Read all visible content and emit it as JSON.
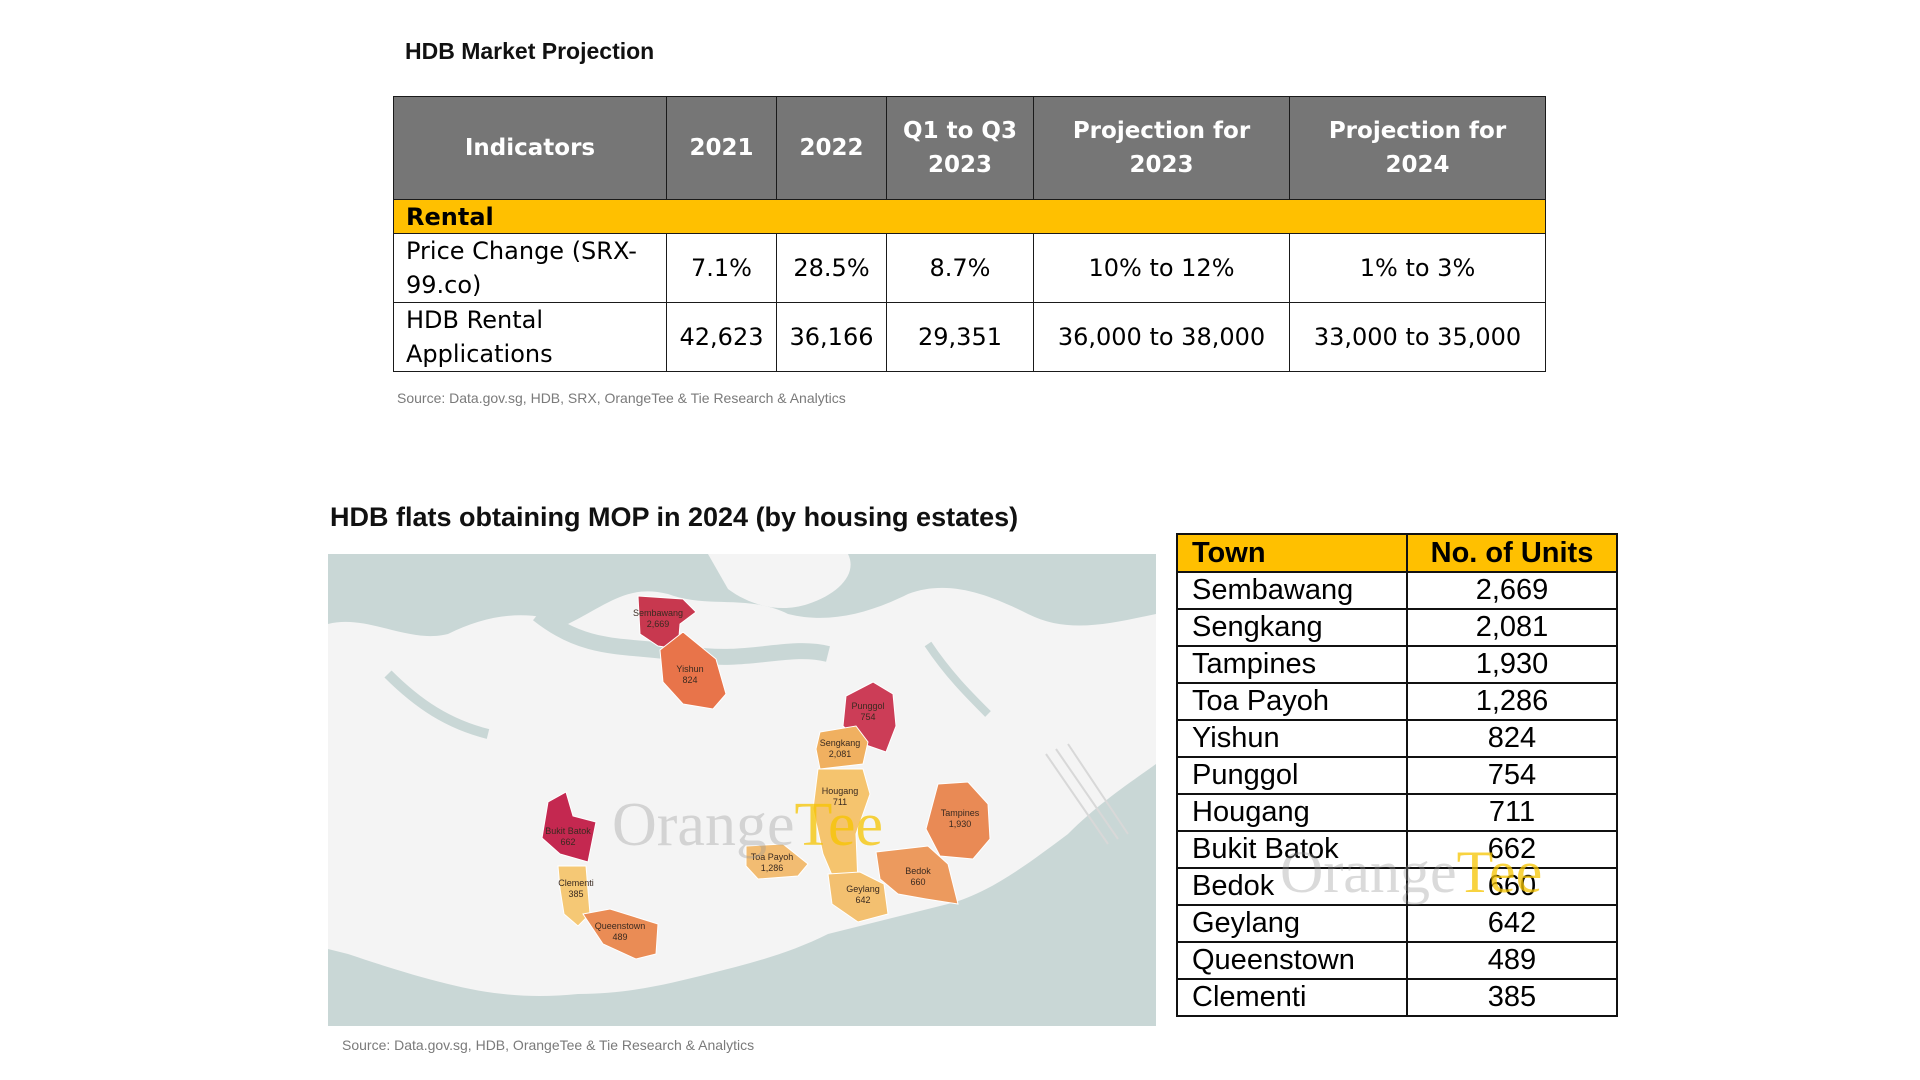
{
  "projection": {
    "title": "HDB Market Projection",
    "headers": [
      "Indicators",
      "2021",
      "2022",
      "Q1 to Q3 2023",
      "Projection for 2023",
      "Projection for 2024"
    ],
    "section": "Rental",
    "rows": [
      {
        "indicator": "Price Change (SRX-99.co)",
        "values": [
          "7.1%",
          "28.5%",
          "8.7%",
          "10% to 12%",
          "1% to 3%"
        ]
      },
      {
        "indicator": "HDB Rental Applications",
        "values": [
          "42,623",
          "36,166",
          "29,351",
          "36,000 to 38,000",
          "33,000 to 35,000"
        ]
      }
    ],
    "source": "Source: Data.gov.sg, HDB, SRX, OrangeTee & Tie Research & Analytics"
  },
  "mop": {
    "title": "HDB flats obtaining MOP in 2024 (by housing estates)",
    "source": "Source: Data.gov.sg, HDB, OrangeTee & Tie Research & Analytics",
    "map_labels": [
      {
        "name": "Sembawang",
        "value": "2,669",
        "color": "#c8384f"
      },
      {
        "name": "Yishun",
        "value": "824",
        "color": "#e8744a"
      },
      {
        "name": "Punggol",
        "value": "754",
        "color": "#cc3d57"
      },
      {
        "name": "Sengkang",
        "value": "2,081",
        "color": "#f0b060"
      },
      {
        "name": "Hougang",
        "value": "711",
        "color": "#f5c46e"
      },
      {
        "name": "Tampines",
        "value": "1,930",
        "color": "#e98a55"
      },
      {
        "name": "Bukit Batok",
        "value": "662",
        "color": "#c42850"
      },
      {
        "name": "Toa Payoh",
        "value": "1,286",
        "color": "#f2bc72"
      },
      {
        "name": "Bedok",
        "value": "660",
        "color": "#ec9a5e"
      },
      {
        "name": "Geylang",
        "value": "642",
        "color": "#f3c070"
      },
      {
        "name": "Clementi",
        "value": "385",
        "color": "#f5c875"
      },
      {
        "name": "Queenstown",
        "value": "489",
        "color": "#ea8c55"
      }
    ],
    "table": {
      "headers": [
        "Town",
        "No. of Units"
      ],
      "rows": [
        [
          "Sembawang",
          "2,669"
        ],
        [
          "Sengkang",
          "2,081"
        ],
        [
          "Tampines",
          "1,930"
        ],
        [
          "Toa Payoh",
          "1,286"
        ],
        [
          "Yishun",
          "824"
        ],
        [
          "Punggol",
          "754"
        ],
        [
          "Hougang",
          "711"
        ],
        [
          "Bukit Batok",
          "662"
        ],
        [
          "Bedok",
          "660"
        ],
        [
          "Geylang",
          "642"
        ],
        [
          "Queenstown",
          "489"
        ],
        [
          "Clementi",
          "385"
        ]
      ]
    }
  },
  "watermark": {
    "part1": "Orange",
    "part2": "Tee"
  },
  "colors": {
    "header_gray": "#767676",
    "accent_yellow": "#ffc000",
    "sea": "#c9d7d6",
    "land": "#f4f4f4"
  }
}
